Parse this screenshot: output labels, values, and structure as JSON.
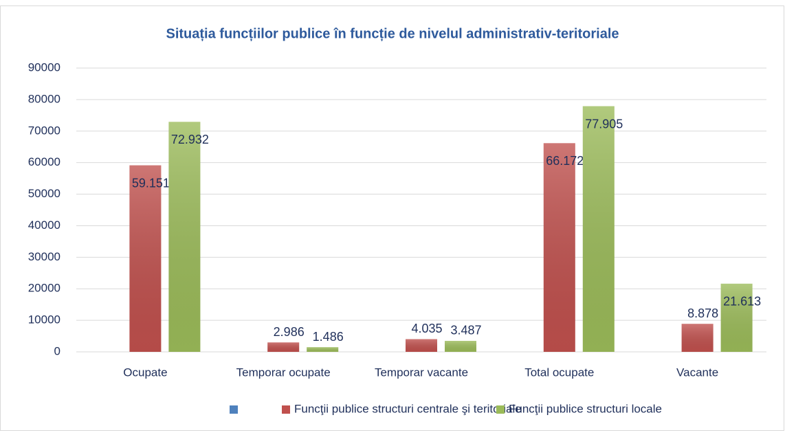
{
  "chart_data": {
    "type": "bar",
    "title": "Situația funcțiilor publice în funcție de nivelul administrativ-teritoriale",
    "categories": [
      "Ocupate",
      "Temporar ocupate",
      "Temporar vacante",
      "Total ocupate",
      "Vacante"
    ],
    "series": [
      {
        "color": "#4f81bd",
        "values": [
          null,
          null,
          null,
          null,
          null
        ]
      },
      {
        "name": "Funcţii publice structuri centrale şi teritoriale",
        "color": "#c0504d",
        "values": [
          59151,
          2986,
          4035,
          66172,
          8878
        ],
        "value_labels": [
          "59.151",
          "2.986",
          "4.035",
          "66.172",
          "8.878"
        ]
      },
      {
        "name": "Funcţii publice structuri locale",
        "color": "#9bbb59",
        "values": [
          72932,
          1486,
          3487,
          77905,
          21613
        ],
        "value_labels": [
          "72.932",
          "1.486",
          "3.487",
          "77.905",
          "21.613"
        ]
      }
    ],
    "ylim": [
      0,
      90000
    ],
    "yticks": [
      0,
      10000,
      20000,
      30000,
      40000,
      50000,
      60000,
      70000,
      80000,
      90000
    ],
    "grid": true,
    "legend": "bottom"
  }
}
